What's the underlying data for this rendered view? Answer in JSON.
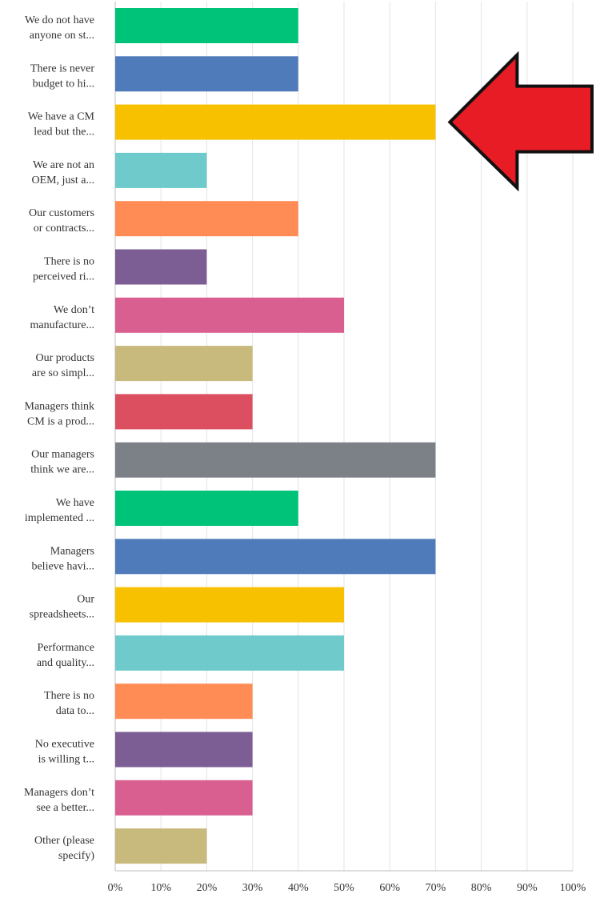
{
  "chart_data": {
    "type": "bar",
    "orientation": "horizontal",
    "title": "",
    "xlabel": "",
    "ylabel": "",
    "xlim": [
      0,
      100
    ],
    "x_ticks": [
      "0%",
      "10%",
      "20%",
      "30%",
      "40%",
      "50%",
      "60%",
      "70%",
      "80%",
      "90%",
      "100%"
    ],
    "grid": true,
    "categories": [
      [
        "We do not have",
        "anyone on st..."
      ],
      [
        "There is never",
        "budget to hi..."
      ],
      [
        "We have a CM",
        "lead but the..."
      ],
      [
        "We are not an",
        "OEM, just a..."
      ],
      [
        "Our customers",
        "or contracts..."
      ],
      [
        "There is no",
        "perceived ri..."
      ],
      [
        "We don’t",
        "manufacture..."
      ],
      [
        "Our products",
        "are so simpl..."
      ],
      [
        "Managers think",
        "CM is a prod..."
      ],
      [
        "Our managers",
        "think we are..."
      ],
      [
        "We have",
        "implemented ..."
      ],
      [
        "Managers",
        "believe havi..."
      ],
      [
        "Our",
        "spreadsheets..."
      ],
      [
        "Performance",
        "and quality..."
      ],
      [
        "There is no",
        "data to..."
      ],
      [
        "No executive",
        "is willing t..."
      ],
      [
        "Managers don’t",
        "see a better..."
      ],
      [
        "Other (please",
        "specify)"
      ]
    ],
    "values": [
      40,
      40,
      70,
      20,
      40,
      20,
      50,
      30,
      30,
      70,
      40,
      70,
      50,
      50,
      30,
      30,
      30,
      20
    ],
    "colors": [
      "#00c37a",
      "#507bbb",
      "#f7c100",
      "#6fcacc",
      "#ff8c55",
      "#7c5e95",
      "#d85f90",
      "#c8b97c",
      "#dc4f60",
      "#7b8187",
      "#00c37a",
      "#507bbb",
      "#f7c100",
      "#6fcacc",
      "#ff8c55",
      "#7c5e95",
      "#d85f90",
      "#c8b97c"
    ],
    "annotation": {
      "type": "arrow",
      "direction": "left",
      "points_to_index": 2,
      "color": "#e81c24"
    }
  }
}
